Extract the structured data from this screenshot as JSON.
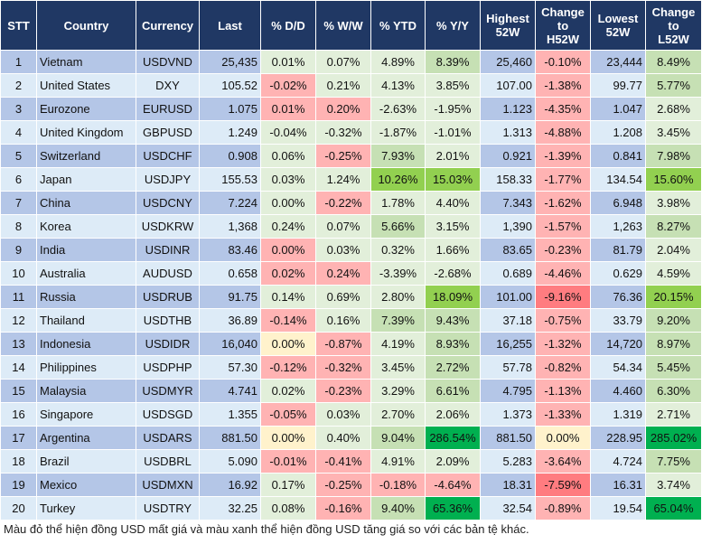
{
  "headers": [
    "STT",
    "Country",
    "Currency",
    "Last",
    "% D/D",
    "% W/W",
    "% YTD",
    "% Y/Y",
    "Highest 52W",
    "Change to H52W",
    "Lowest 52W",
    "Change to L52W"
  ],
  "colors": {
    "header": "#203864",
    "row_odd": "#b4c6e7",
    "row_even": "#ddebf7",
    "green_light": "#e2efda",
    "green_mid": "#c6e0b4",
    "green_lime": "#92d050",
    "green_dark": "#00b050",
    "red_light": "#ffb3b3",
    "red_dark": "#ff7c80",
    "neutral_yellow": "#fff2cc"
  },
  "rows": [
    {
      "cells": [
        "1",
        "Vietnam",
        "USDVND",
        "25,435",
        "0.01%",
        "0.07%",
        "4.89%",
        "8.39%",
        "25,460",
        "-0.10%",
        "23,444",
        "8.49%"
      ],
      "shade": [
        "g",
        "g",
        "g",
        "G",
        "r0",
        "G"
      ]
    },
    {
      "cells": [
        "2",
        "United States",
        "DXY",
        "105.52",
        "-0.02%",
        "0.21%",
        "4.13%",
        "3.85%",
        "107.00",
        "-1.38%",
        "99.77",
        "5.77%"
      ],
      "shade": [
        "r0",
        "g",
        "g",
        "g",
        "r0",
        "G"
      ]
    },
    {
      "cells": [
        "3",
        "Eurozone",
        "EURUSD",
        "1.075",
        "0.01%",
        "0.20%",
        "-2.63%",
        "-1.95%",
        "1.123",
        "-4.35%",
        "1.047",
        "2.68%"
      ],
      "shade": [
        "r0",
        "r0",
        "g",
        "g",
        "r0",
        "g"
      ]
    },
    {
      "cells": [
        "4",
        "United Kingdom",
        "GBPUSD",
        "1.249",
        "-0.04%",
        "-0.32%",
        "-1.87%",
        "-1.01%",
        "1.313",
        "-4.88%",
        "1.208",
        "3.45%"
      ],
      "shade": [
        "g",
        "g",
        "g",
        "g",
        "r0",
        "g"
      ]
    },
    {
      "cells": [
        "5",
        "Switzerland",
        "USDCHF",
        "0.908",
        "0.06%",
        "-0.25%",
        "7.93%",
        "2.01%",
        "0.921",
        "-1.39%",
        "0.841",
        "7.98%"
      ],
      "shade": [
        "g",
        "r0",
        "G",
        "g",
        "r0",
        "G"
      ]
    },
    {
      "cells": [
        "6",
        "Japan",
        "USDJPY",
        "155.53",
        "0.03%",
        "1.24%",
        "10.26%",
        "15.03%",
        "158.33",
        "-1.77%",
        "134.54",
        "15.60%"
      ],
      "shade": [
        "g",
        "g",
        "L",
        "L",
        "r0",
        "L"
      ]
    },
    {
      "cells": [
        "7",
        "China",
        "USDCNY",
        "7.224",
        "0.00%",
        "-0.22%",
        "1.78%",
        "4.40%",
        "7.343",
        "-1.62%",
        "6.948",
        "3.98%"
      ],
      "shade": [
        "g",
        "r0",
        "g",
        "g",
        "r0",
        "g"
      ]
    },
    {
      "cells": [
        "8",
        "Korea",
        "USDKRW",
        "1,368",
        "0.24%",
        "0.07%",
        "5.66%",
        "3.15%",
        "1,390",
        "-1.57%",
        "1,263",
        "8.27%"
      ],
      "shade": [
        "g",
        "g",
        "G",
        "g",
        "r0",
        "G"
      ]
    },
    {
      "cells": [
        "9",
        "India",
        "USDINR",
        "83.46",
        "0.00%",
        "0.03%",
        "0.32%",
        "1.66%",
        "83.65",
        "-0.23%",
        "81.79",
        "2.04%"
      ],
      "shade": [
        "r0",
        "g",
        "g",
        "g",
        "r0",
        "g"
      ]
    },
    {
      "cells": [
        "10",
        "Australia",
        "AUDUSD",
        "0.658",
        "0.02%",
        "0.24%",
        "-3.39%",
        "-2.68%",
        "0.689",
        "-4.46%",
        "0.629",
        "4.59%"
      ],
      "shade": [
        "r0",
        "r0",
        "g",
        "g",
        "r0",
        "g"
      ]
    },
    {
      "cells": [
        "11",
        "Russia",
        "USDRUB",
        "91.75",
        "0.14%",
        "0.69%",
        "2.80%",
        "18.09%",
        "101.00",
        "-9.16%",
        "76.36",
        "20.15%"
      ],
      "shade": [
        "g",
        "g",
        "g",
        "L",
        "R",
        "L"
      ]
    },
    {
      "cells": [
        "12",
        "Thailand",
        "USDTHB",
        "36.89",
        "-0.14%",
        "0.16%",
        "7.39%",
        "9.43%",
        "37.18",
        "-0.75%",
        "33.79",
        "9.20%"
      ],
      "shade": [
        "r0",
        "g",
        "G",
        "G",
        "r0",
        "G"
      ]
    },
    {
      "cells": [
        "13",
        "Indonesia",
        "USDIDR",
        "16,040",
        "0.00%",
        "-0.87%",
        "4.19%",
        "8.93%",
        "16,255",
        "-1.32%",
        "14,720",
        "8.97%"
      ],
      "shade": [
        "y",
        "r0",
        "g",
        "G",
        "r0",
        "G"
      ]
    },
    {
      "cells": [
        "14",
        "Philippines",
        "USDPHP",
        "57.30",
        "-0.12%",
        "-0.32%",
        "3.45%",
        "2.72%",
        "57.78",
        "-0.82%",
        "54.34",
        "5.45%"
      ],
      "shade": [
        "r0",
        "r0",
        "g",
        "G",
        "r0",
        "G"
      ]
    },
    {
      "cells": [
        "15",
        "Malaysia",
        "USDMYR",
        "4.741",
        "0.02%",
        "-0.23%",
        "3.29%",
        "6.61%",
        "4.795",
        "-1.13%",
        "4.460",
        "6.30%"
      ],
      "shade": [
        "g",
        "r0",
        "g",
        "G",
        "r0",
        "G"
      ]
    },
    {
      "cells": [
        "16",
        "Singapore",
        "USDSGD",
        "1.355",
        "-0.05%",
        "0.03%",
        "2.70%",
        "2.06%",
        "1.373",
        "-1.33%",
        "1.319",
        "2.71%"
      ],
      "shade": [
        "r0",
        "g",
        "g",
        "g",
        "r0",
        "g"
      ]
    },
    {
      "cells": [
        "17",
        "Argentina",
        "USDARS",
        "881.50",
        "0.00%",
        "0.40%",
        "9.04%",
        "286.54%",
        "881.50",
        "0.00%",
        "228.95",
        "285.02%"
      ],
      "shade": [
        "y",
        "g",
        "G",
        "D",
        "y",
        "D"
      ]
    },
    {
      "cells": [
        "18",
        "Brazil",
        "USDBRL",
        "5.090",
        "-0.01%",
        "-0.41%",
        "4.91%",
        "2.09%",
        "5.283",
        "-3.64%",
        "4.724",
        "7.75%"
      ],
      "shade": [
        "r0",
        "r0",
        "g",
        "g",
        "r0",
        "G"
      ]
    },
    {
      "cells": [
        "19",
        "Mexico",
        "USDMXN",
        "16.92",
        "0.17%",
        "-0.25%",
        "-0.18%",
        "-4.64%",
        "18.31",
        "-7.59%",
        "16.31",
        "3.74%"
      ],
      "shade": [
        "g",
        "r0",
        "r0",
        "r0",
        "R",
        "g"
      ]
    },
    {
      "cells": [
        "20",
        "Turkey",
        "USDTRY",
        "32.25",
        "0.08%",
        "-0.16%",
        "9.40%",
        "65.36%",
        "32.54",
        "-0.89%",
        "19.54",
        "65.04%"
      ],
      "shade": [
        "g",
        "r0",
        "G",
        "D",
        "r0",
        "D"
      ]
    }
  ],
  "footnote": "Màu đỏ thể hiện đồng USD mất giá và màu xanh thể hiện đồng USD tăng giá so với các bản tệ khác."
}
